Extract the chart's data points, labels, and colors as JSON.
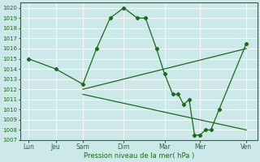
{
  "lines": [
    {
      "x": [
        0,
        1,
        2,
        2.5,
        3,
        3.5,
        4,
        4.3,
        4.7,
        5,
        5.3,
        5.5,
        5.7,
        5.9,
        6.1,
        6.3,
        6.5,
        6.7,
        7,
        8
      ],
      "y": [
        1015.0,
        1014.0,
        1012.5,
        1016.0,
        1019.0,
        1020.0,
        1019.0,
        1019.0,
        1016.0,
        1013.5,
        1011.5,
        1011.5,
        1010.5,
        1011.0,
        1007.5,
        1007.5,
        1008.0,
        1008.0,
        1010.0,
        1016.5
      ],
      "color": "#1a6b1a",
      "linewidth": 0.9,
      "marker": "D",
      "markersize": 2.2
    },
    {
      "x": [
        2,
        8
      ],
      "y": [
        1012.0,
        1016.0
      ],
      "color": "#1a6b1a",
      "linewidth": 0.9,
      "marker": null
    },
    {
      "x": [
        2,
        8
      ],
      "y": [
        1011.5,
        1008.0
      ],
      "color": "#1a6b1a",
      "linewidth": 0.9,
      "marker": null
    }
  ],
  "xtick_positions": [
    0,
    1,
    2,
    3.5,
    5,
    6.3,
    8
  ],
  "xticklabels": [
    "Lun",
    "Jeu",
    "Sam",
    "Dim",
    "Mar",
    "Mer",
    "Ven"
  ],
  "ylim": [
    1007,
    1020.5
  ],
  "yticks": [
    1007,
    1008,
    1009,
    1010,
    1011,
    1012,
    1013,
    1014,
    1015,
    1016,
    1017,
    1018,
    1019,
    1020
  ],
  "xlabel": "Pression niveau de la mer( hPa )",
  "bg_color": "#cce8e8",
  "grid_color": "#b0d4d4",
  "line_color": "#1a6b1a",
  "axis_color": "#336633",
  "xlim": [
    -0.3,
    8.4
  ]
}
